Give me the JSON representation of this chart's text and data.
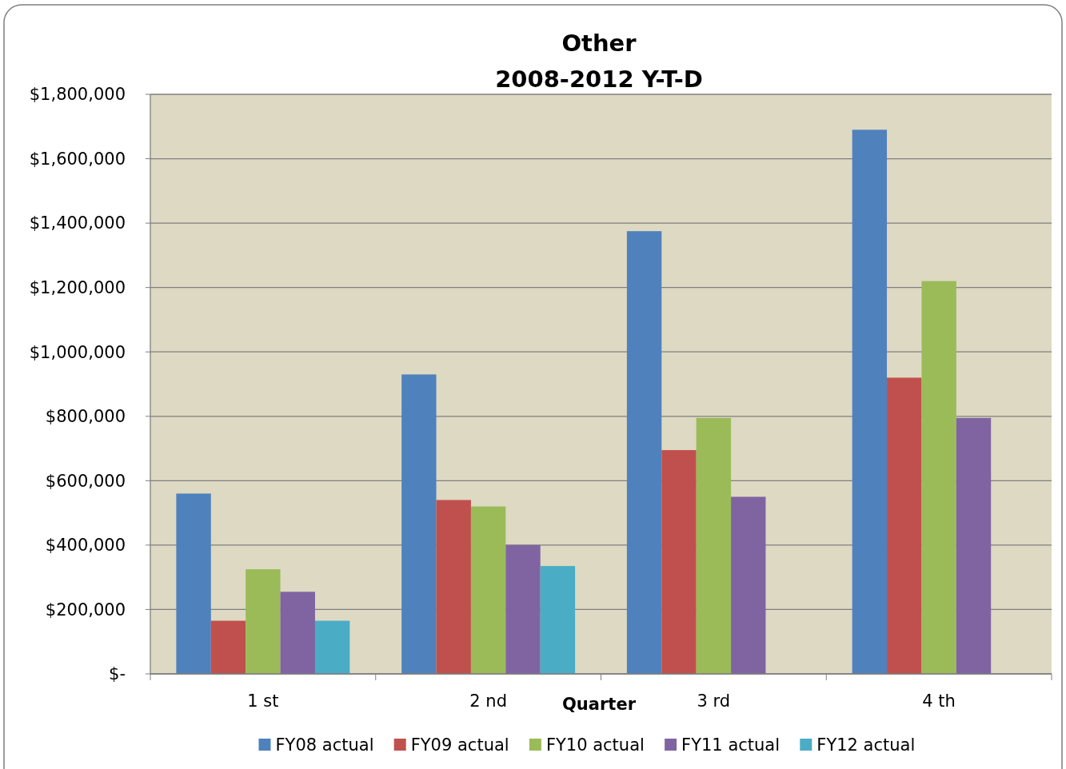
{
  "chart_data": {
    "type": "bar",
    "title": "Other",
    "subtitle": "2008-2012 Y-T-D",
    "xlabel": "Quarter",
    "categories": [
      "1 st",
      "2 nd",
      "3 rd",
      "4 th"
    ],
    "series": [
      {
        "name": "FY08 actual",
        "color": "#4f81bd",
        "values": [
          560000,
          930000,
          1375000,
          1690000
        ]
      },
      {
        "name": "FY09 actual",
        "color": "#c0504d",
        "values": [
          165000,
          540000,
          695000,
          920000
        ]
      },
      {
        "name": "FY10 actual",
        "color": "#9bbb59",
        "values": [
          325000,
          520000,
          795000,
          1220000
        ]
      },
      {
        "name": "FY11 actual",
        "color": "#8064a2",
        "values": [
          255000,
          400000,
          550000,
          795000
        ]
      },
      {
        "name": "FY12 actual",
        "color": "#4bacc6",
        "values": [
          165000,
          335000,
          null,
          null
        ]
      }
    ],
    "ylim": [
      0,
      1800000
    ],
    "yticks": [
      {
        "value": 0,
        "label": "$-"
      },
      {
        "value": 200000,
        "label": "$200,000"
      },
      {
        "value": 400000,
        "label": "$400,000"
      },
      {
        "value": 600000,
        "label": "$600,000"
      },
      {
        "value": 800000,
        "label": "$800,000"
      },
      {
        "value": 1000000,
        "label": "$1,000,000"
      },
      {
        "value": 1200000,
        "label": "$1,200,000"
      },
      {
        "value": 1400000,
        "label": "$1,400,000"
      },
      {
        "value": 1600000,
        "label": "$1,600,000"
      },
      {
        "value": 1800000,
        "label": "$1,800,000"
      }
    ],
    "grid": "y",
    "legend": "bottom"
  }
}
